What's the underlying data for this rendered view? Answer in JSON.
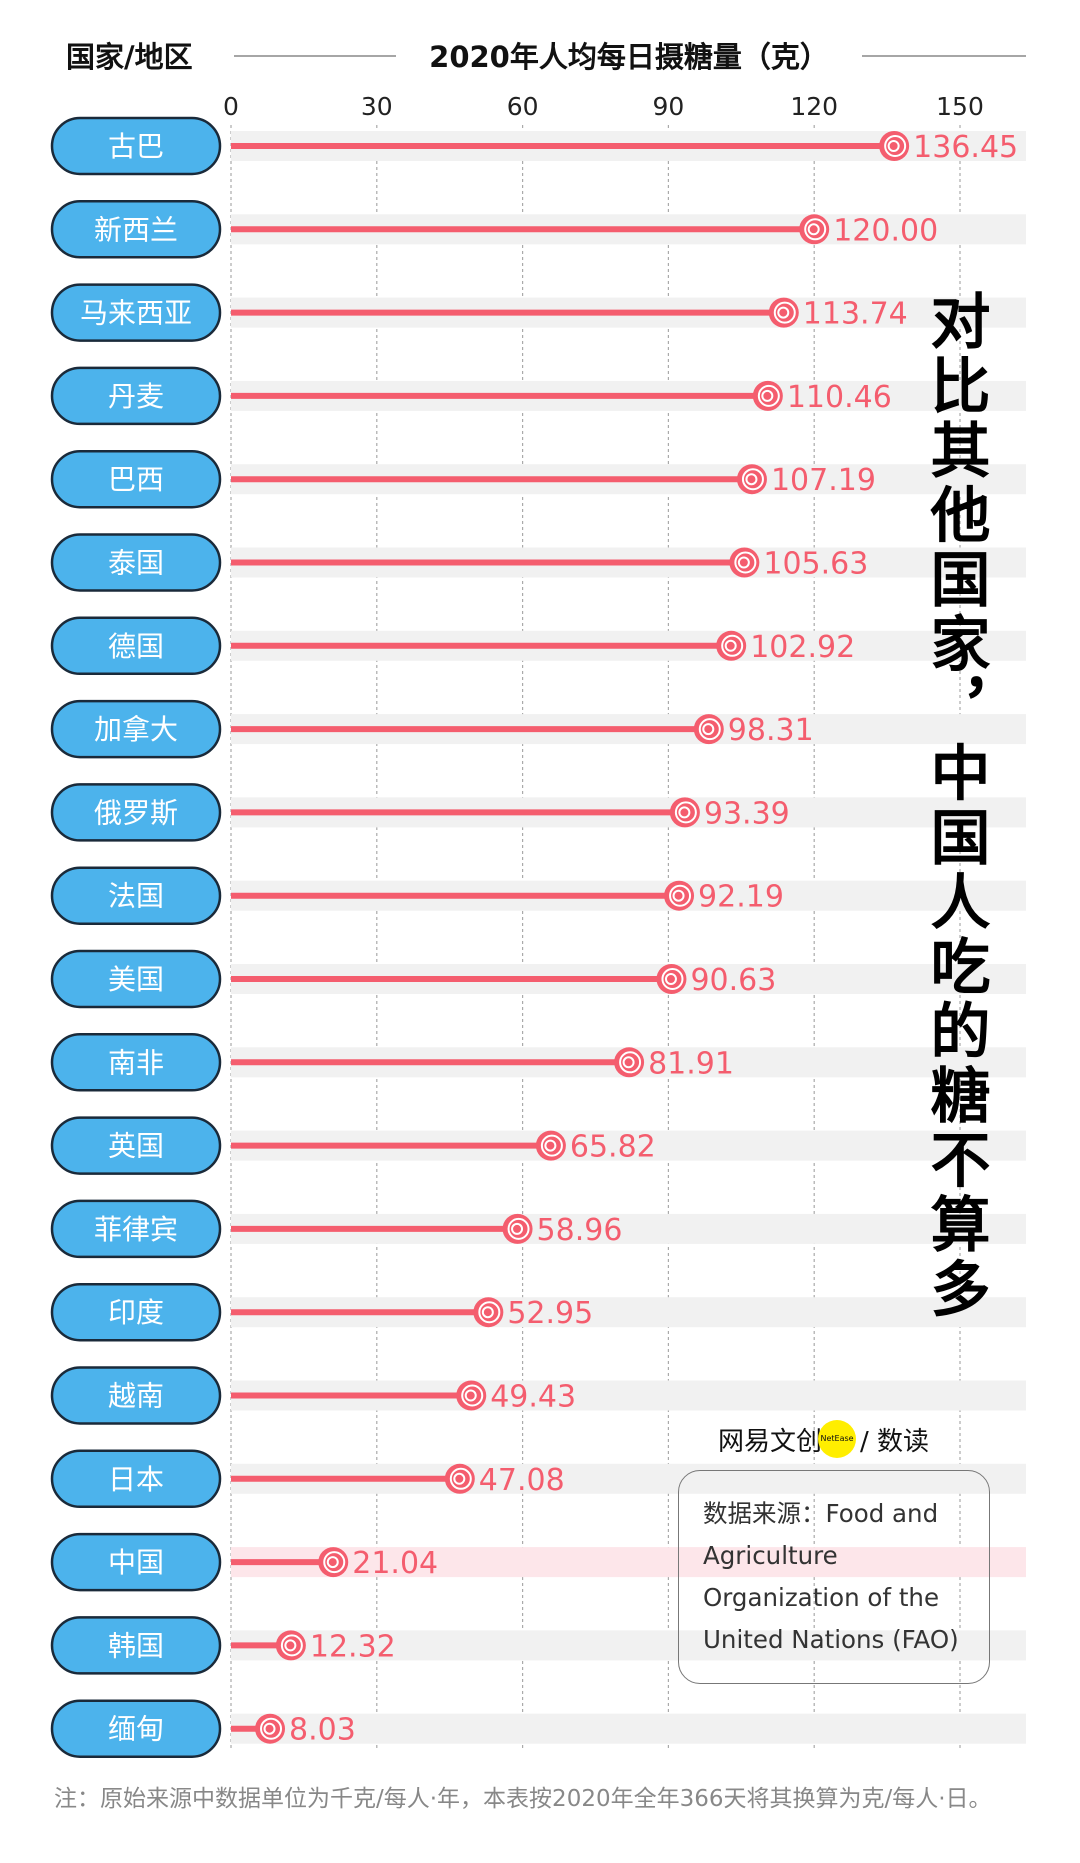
{
  "chart_data": {
    "type": "bar",
    "title": "2020年人均每日摄糖量（克）",
    "category_header": "国家/地区",
    "categories": [
      "古巴",
      "新西兰",
      "马来西亚",
      "丹麦",
      "巴西",
      "泰国",
      "德国",
      "加拿大",
      "俄罗斯",
      "法国",
      "美国",
      "南非",
      "英国",
      "菲律宾",
      "印度",
      "越南",
      "日本",
      "中国",
      "韩国",
      "缅甸"
    ],
    "values": [
      136.45,
      120.0,
      113.74,
      110.46,
      107.19,
      105.63,
      102.92,
      98.31,
      93.39,
      92.19,
      90.63,
      81.91,
      65.82,
      58.96,
      52.95,
      49.43,
      47.08,
      21.04,
      12.32,
      8.03
    ],
    "value_labels": [
      "136.45",
      "120.00",
      "113.74",
      "110.46",
      "107.19",
      "105.63",
      "102.92",
      "98.31",
      "93.39",
      "92.19",
      "90.63",
      "81.91",
      "65.82",
      "58.96",
      "52.95",
      "49.43",
      "47.08",
      "21.04",
      "12.32",
      "8.03"
    ],
    "xticks": [
      0,
      30,
      60,
      90,
      120,
      150
    ],
    "xlim": [
      0,
      163
    ],
    "grid": true,
    "highlight": "中国",
    "colors": {
      "bar": "#f45d6e",
      "pill": "#4cb3ec",
      "band": "#f1f1f1",
      "highlight_band": "#fde6ea"
    }
  },
  "headline": "对比其他国家，中国人吃的糖不算多",
  "logo": {
    "text_left": "网易文创",
    "badge": "NetEase",
    "text_right": "/ 数读"
  },
  "source": "数据来源：Food and Agriculture Organization of the United Nations (FAO)",
  "note": "注：原始来源中数据单位为千克/每人·年，本表按2020年全年366天将其换算为克/每人·日。"
}
